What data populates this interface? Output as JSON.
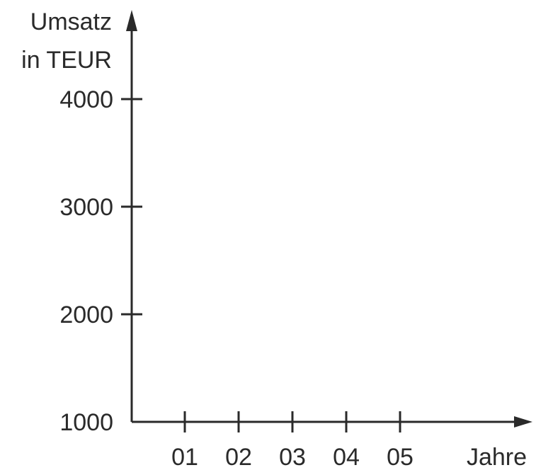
{
  "chart_data": {
    "type": "line",
    "ylabel_line1": "Umsatz",
    "ylabel_line2": "in TEUR",
    "xlabel": "Jahre",
    "categories": [
      "01",
      "02",
      "03",
      "04",
      "05"
    ],
    "yticks": [
      1000,
      2000,
      3000,
      4000
    ],
    "ytick_labels": [
      "1000",
      "2000",
      "3000",
      "4000"
    ],
    "ylim": [
      1000,
      4000
    ],
    "series": [],
    "grid": false,
    "colors": {
      "axis": "#2a2a2a",
      "text": "#2a2a2a"
    }
  }
}
